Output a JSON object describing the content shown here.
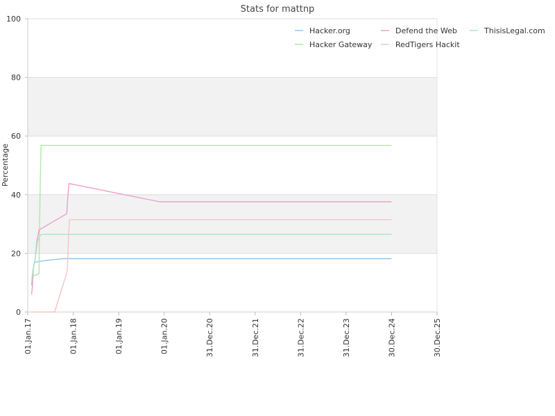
{
  "chart_data": {
    "type": "line",
    "title": "Stats for mattnp",
    "ylabel": "Percentage",
    "ylim": [
      0,
      100
    ],
    "yticks": [
      "0",
      "20",
      "40",
      "60",
      "80",
      "100"
    ],
    "xlim": [
      "2017-01-01",
      "2025-12-30"
    ],
    "xticks": [
      {
        "label": "01.Jan.17",
        "date": "2017-01-01"
      },
      {
        "label": "01.Jan.18",
        "date": "2018-01-01"
      },
      {
        "label": "01.Jan.19",
        "date": "2019-01-01"
      },
      {
        "label": "01.Jan.20",
        "date": "2020-01-01"
      },
      {
        "label": "31.Dec.20",
        "date": "2020-12-31"
      },
      {
        "label": "31.Dec.21",
        "date": "2021-12-31"
      },
      {
        "label": "31.Dec.22",
        "date": "2022-12-31"
      },
      {
        "label": "31.Dec.23",
        "date": "2023-12-31"
      },
      {
        "label": "30.Dec.24",
        "date": "2024-12-30"
      },
      {
        "label": "30.Dec.25",
        "date": "2025-12-30"
      }
    ],
    "grid": "horizontal bands",
    "legend_position": "top-right",
    "series": [
      {
        "name": "Hacker.org",
        "color": "#92c5ec",
        "points": [
          [
            "2017-02-01",
            9
          ],
          [
            "2017-02-08",
            12
          ],
          [
            "2017-02-18",
            16
          ],
          [
            "2017-03-01",
            17
          ],
          [
            "2017-06-01",
            17.6
          ],
          [
            "2017-10-15",
            18.2
          ],
          [
            "2024-12-30",
            18.2
          ]
        ]
      },
      {
        "name": "Hacker Gateway",
        "color": "#aee8a6",
        "points": [
          [
            "2017-02-01",
            10
          ],
          [
            "2017-02-08",
            12.5
          ],
          [
            "2017-03-10",
            12.5
          ],
          [
            "2017-03-25",
            13
          ],
          [
            "2017-04-01",
            13
          ],
          [
            "2017-04-05",
            28
          ],
          [
            "2017-04-12",
            45
          ],
          [
            "2017-04-18",
            56.8
          ],
          [
            "2024-12-30",
            56.8
          ]
        ]
      },
      {
        "name": "Defend the Web",
        "color": "#eba0c8",
        "points": [
          [
            "2017-02-01",
            6
          ],
          [
            "2017-02-08",
            9
          ],
          [
            "2017-02-15",
            15
          ],
          [
            "2017-03-01",
            18
          ],
          [
            "2017-03-15",
            24
          ],
          [
            "2017-04-01",
            28
          ],
          [
            "2017-11-10",
            33.5
          ],
          [
            "2017-11-20",
            40
          ],
          [
            "2017-11-28",
            43.8
          ],
          [
            "2019-11-25",
            37.6
          ],
          [
            "2024-12-30",
            37.6
          ]
        ]
      },
      {
        "name": "RedTigers Hackit",
        "color": "#f5c4c6",
        "points": [
          [
            "2017-02-01",
            0
          ],
          [
            "2017-08-05",
            0
          ],
          [
            "2017-11-15",
            14
          ],
          [
            "2017-11-25",
            26
          ],
          [
            "2017-12-01",
            31.5
          ],
          [
            "2024-12-30",
            31.5
          ]
        ]
      },
      {
        "name": "ThisisLegal.com",
        "color": "#a5e6c4",
        "points": [
          [
            "2017-02-01",
            10
          ],
          [
            "2017-02-10",
            14
          ],
          [
            "2017-03-01",
            18
          ],
          [
            "2017-03-20",
            24
          ],
          [
            "2017-04-10",
            26
          ],
          [
            "2017-04-25",
            26.5
          ],
          [
            "2024-12-30",
            26.5
          ]
        ]
      }
    ]
  }
}
